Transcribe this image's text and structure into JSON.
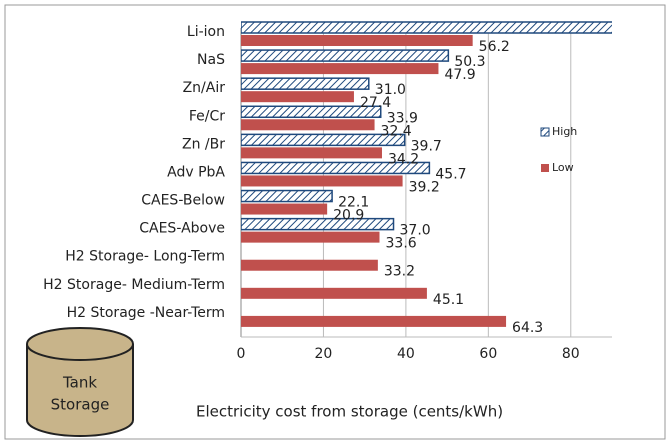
{
  "chart_data": {
    "type": "hbar",
    "categories": [
      "Li-ion",
      "NaS",
      "Zn/Air",
      "Fe/Cr",
      "Zn /Br",
      "Adv PbA",
      "CAES-Below",
      "CAES-Above",
      "H2 Storage- Long-Term",
      "H2 Storage- Medium-Term",
      "H2 Storage -Near-Term"
    ],
    "series": [
      {
        "name": "High",
        "color": "#1f497d",
        "pattern": "hatch",
        "values": [
          95,
          50.3,
          31.0,
          33.9,
          39.7,
          45.7,
          22.1,
          37.0,
          null,
          null,
          null
        ],
        "value_labels": [
          null,
          "50.3",
          "31.0",
          "33.9",
          "39.7",
          "45.7",
          "22.1",
          "37.0",
          null,
          null,
          null
        ]
      },
      {
        "name": "Low",
        "color": "#c0504d",
        "values": [
          56.2,
          47.9,
          27.4,
          32.4,
          34.2,
          39.2,
          20.9,
          33.6,
          33.2,
          45.1,
          64.3
        ],
        "value_labels": [
          "56.2",
          "47.9",
          "27.4",
          "32.4",
          "34.2",
          "39.2",
          "20.9",
          "33.6",
          "33.2",
          "45.1",
          "64.3"
        ]
      }
    ],
    "x_label": "Electricity cost from storage (cents/kWh)",
    "annotation": [
      "Tank",
      "Storage"
    ],
    "xlim": [
      0,
      90
    ],
    "xticks": [
      0,
      20,
      40,
      60,
      80
    ],
    "grid": true,
    "legend": "right"
  }
}
